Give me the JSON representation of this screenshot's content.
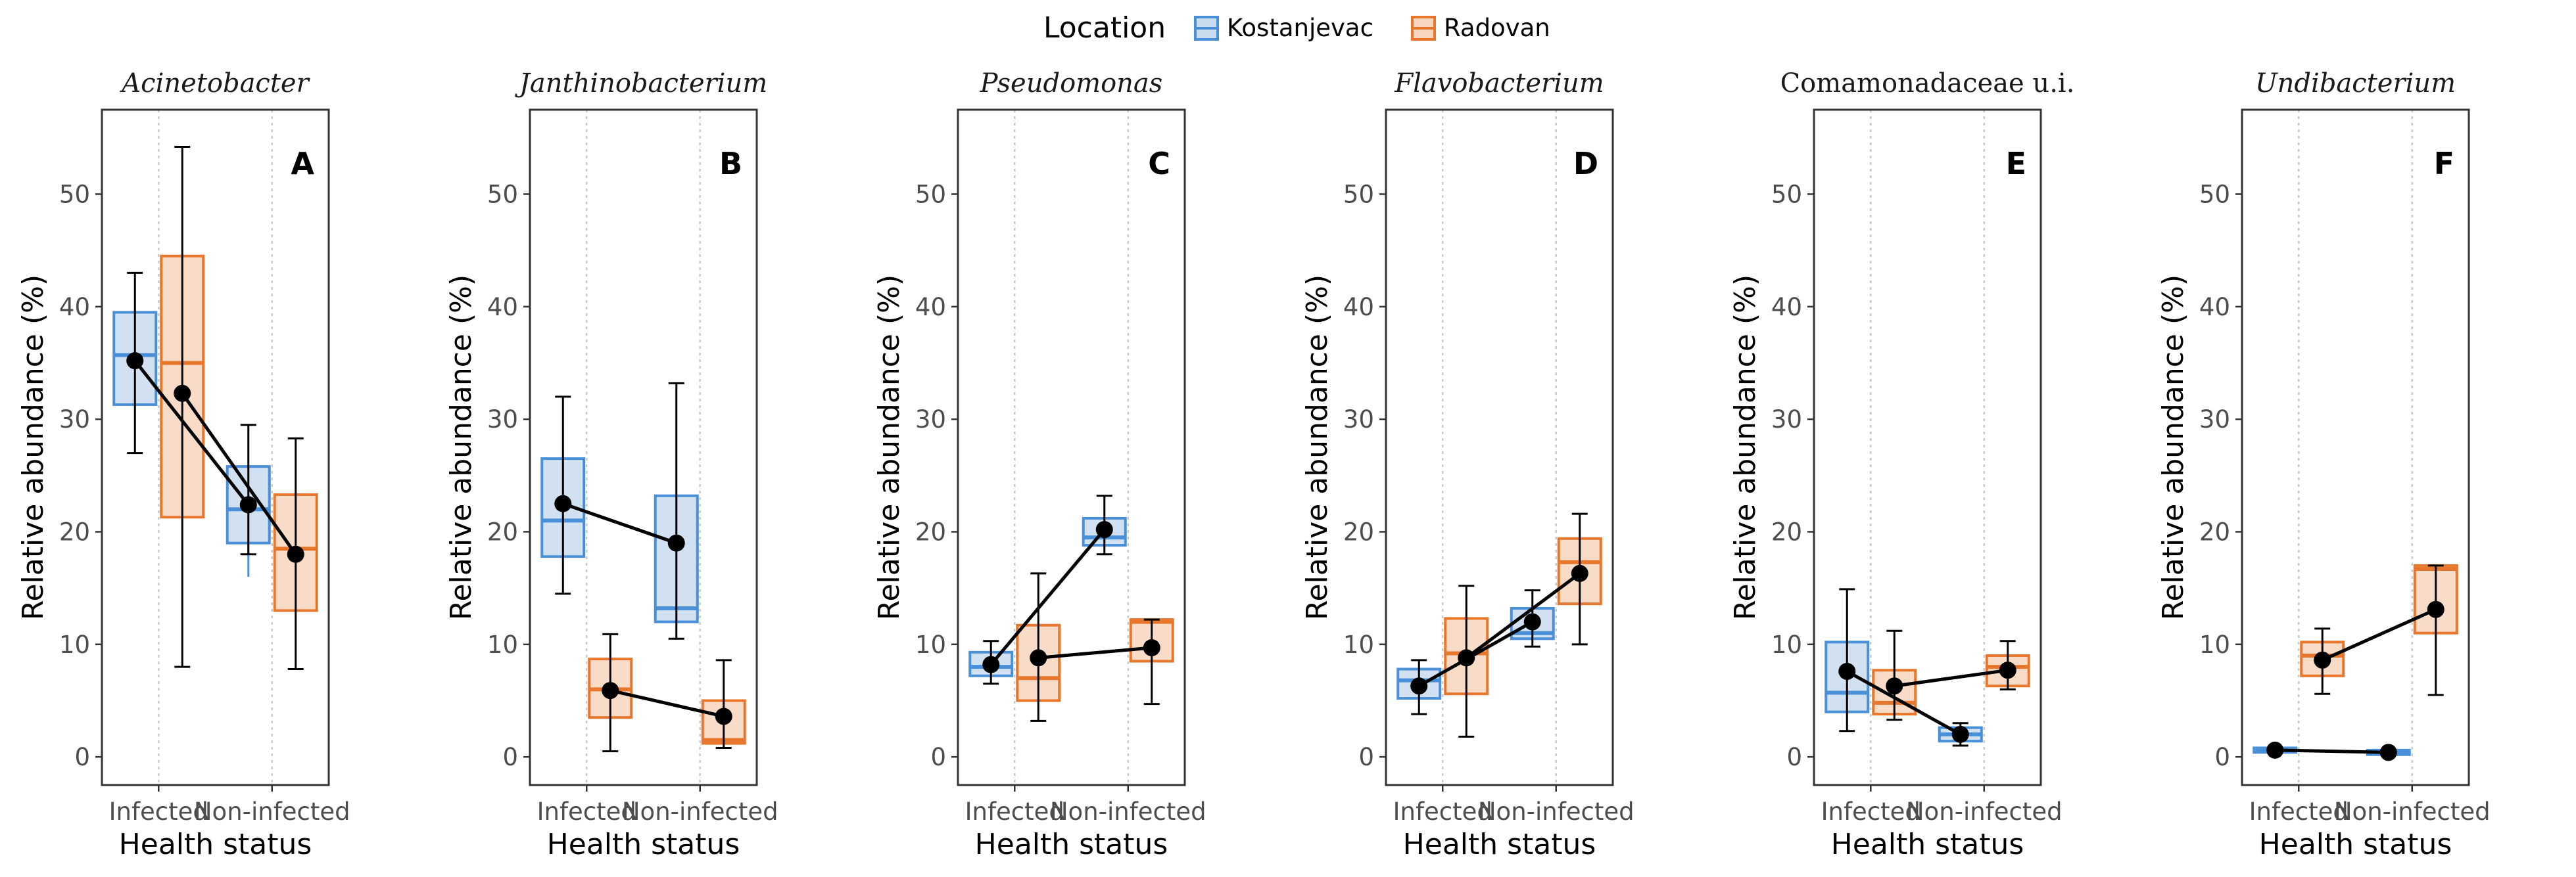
{
  "legend": {
    "title": "Location",
    "items": [
      {
        "label": "Kostanjevac",
        "color": "#4A90D9",
        "fill": "#C9DCEF"
      },
      {
        "label": "Radovan",
        "color": "#E8772E",
        "fill": "#F8D6BE"
      }
    ]
  },
  "chart_data": [
    {
      "type": "box",
      "panel": "A",
      "title": "Acinetobacter",
      "title_italic": true,
      "xlabel": "Health status",
      "ylabel": "Relative abundance (%)",
      "categories": [
        "Infected",
        "Non-infected"
      ],
      "ylim": [
        -2.5,
        57.5
      ],
      "yticks": [
        0,
        10,
        20,
        30,
        40,
        50
      ],
      "series": [
        {
          "name": "Kostanjevac",
          "boxes": [
            {
              "q1": 31.3,
              "median": 35.7,
              "q3": 39.5,
              "whisker_low": 31.3,
              "whisker_high": 39.5
            },
            {
              "q1": 19.0,
              "median": 22.0,
              "q3": 25.8,
              "whisker_low": 16.0,
              "whisker_high": 25.8
            }
          ],
          "mean": [
            35.2,
            22.4
          ],
          "err_low": [
            27.0,
            18.0
          ],
          "err_high": [
            43.0,
            29.5
          ]
        },
        {
          "name": "Radovan",
          "boxes": [
            {
              "q1": 21.3,
              "median": 35.0,
              "q3": 44.5,
              "whisker_low": 21.3,
              "whisker_high": 44.5
            },
            {
              "q1": 13.0,
              "median": 18.5,
              "q3": 23.3,
              "whisker_low": 13.0,
              "whisker_high": 23.3
            }
          ],
          "mean": [
            32.3,
            18.0
          ],
          "err_low": [
            8.0,
            7.8
          ],
          "err_high": [
            54.2,
            28.3
          ]
        }
      ]
    },
    {
      "type": "box",
      "panel": "B",
      "title": "Janthinobacterium",
      "title_italic": true,
      "xlabel": "Health status",
      "ylabel": "Relative abundance (%)",
      "categories": [
        "Infected",
        "Non-infected"
      ],
      "ylim": [
        -2.5,
        57.5
      ],
      "yticks": [
        0,
        10,
        20,
        30,
        40,
        50
      ],
      "series": [
        {
          "name": "Kostanjevac",
          "boxes": [
            {
              "q1": 17.8,
              "median": 21.0,
              "q3": 26.5,
              "whisker_low": 17.8,
              "whisker_high": 26.5
            },
            {
              "q1": 12.0,
              "median": 13.2,
              "q3": 23.2,
              "whisker_low": 12.0,
              "whisker_high": 23.2
            }
          ],
          "mean": [
            22.5,
            19.0
          ],
          "err_low": [
            14.5,
            10.5
          ],
          "err_high": [
            32.0,
            33.2
          ]
        },
        {
          "name": "Radovan",
          "boxes": [
            {
              "q1": 3.5,
              "median": 6.0,
              "q3": 8.7,
              "whisker_low": 3.5,
              "whisker_high": 8.7
            },
            {
              "q1": 1.2,
              "median": 1.5,
              "q3": 5.0,
              "whisker_low": 1.2,
              "whisker_high": 5.0
            }
          ],
          "mean": [
            5.9,
            3.6
          ],
          "err_low": [
            0.5,
            0.8
          ],
          "err_high": [
            10.9,
            8.6
          ]
        }
      ]
    },
    {
      "type": "box",
      "panel": "C",
      "title": "Pseudomonas",
      "title_italic": true,
      "xlabel": "Health status",
      "ylabel": "Relative abundance (%)",
      "categories": [
        "Infected",
        "Non-infected"
      ],
      "ylim": [
        -2.5,
        57.5
      ],
      "yticks": [
        0,
        10,
        20,
        30,
        40,
        50
      ],
      "series": [
        {
          "name": "Kostanjevac",
          "boxes": [
            {
              "q1": 7.2,
              "median": 8.0,
              "q3": 9.3,
              "whisker_low": 7.2,
              "whisker_high": 9.3
            },
            {
              "q1": 18.8,
              "median": 19.5,
              "q3": 21.2,
              "whisker_low": 18.8,
              "whisker_high": 21.2
            }
          ],
          "mean": [
            8.2,
            20.2
          ],
          "err_low": [
            6.5,
            18.0
          ],
          "err_high": [
            10.3,
            23.2
          ]
        },
        {
          "name": "Radovan",
          "boxes": [
            {
              "q1": 5.0,
              "median": 7.0,
              "q3": 11.7,
              "whisker_low": 5.0,
              "whisker_high": 11.7
            },
            {
              "q1": 8.5,
              "median": 12.0,
              "q3": 12.2,
              "whisker_low": 8.5,
              "whisker_high": 12.2
            }
          ],
          "mean": [
            8.8,
            9.7
          ],
          "err_low": [
            3.2,
            4.7
          ],
          "err_high": [
            16.3,
            12.2
          ]
        }
      ]
    },
    {
      "type": "box",
      "panel": "D",
      "title": "Flavobacterium",
      "title_italic": true,
      "xlabel": "Health status",
      "ylabel": "Relative abundance (%)",
      "categories": [
        "Infected",
        "Non-infected"
      ],
      "ylim": [
        -2.5,
        57.5
      ],
      "yticks": [
        0,
        10,
        20,
        30,
        40,
        50
      ],
      "series": [
        {
          "name": "Kostanjevac",
          "boxes": [
            {
              "q1": 5.2,
              "median": 6.8,
              "q3": 7.8,
              "whisker_low": 5.2,
              "whisker_high": 7.8
            },
            {
              "q1": 10.5,
              "median": 11.0,
              "q3": 13.2,
              "whisker_low": 10.5,
              "whisker_high": 13.2
            }
          ],
          "mean": [
            6.3,
            12.0
          ],
          "err_low": [
            3.8,
            9.8
          ],
          "err_high": [
            8.6,
            14.8
          ]
        },
        {
          "name": "Radovan",
          "boxes": [
            {
              "q1": 5.6,
              "median": 9.2,
              "q3": 12.3,
              "whisker_low": 5.6,
              "whisker_high": 12.3
            },
            {
              "q1": 13.6,
              "median": 17.3,
              "q3": 19.4,
              "whisker_low": 13.6,
              "whisker_high": 19.4
            }
          ],
          "mean": [
            8.8,
            16.3
          ],
          "err_low": [
            1.8,
            10.0
          ],
          "err_high": [
            15.2,
            21.6
          ]
        }
      ]
    },
    {
      "type": "box",
      "panel": "E",
      "title": "Comamonadaceae u.i.",
      "title_italic": false,
      "xlabel": "Health status",
      "ylabel": "Relative abundance (%)",
      "categories": [
        "Infected",
        "Non-infected"
      ],
      "ylim": [
        -2.5,
        57.5
      ],
      "yticks": [
        0,
        10,
        20,
        30,
        40,
        50
      ],
      "series": [
        {
          "name": "Kostanjevac",
          "boxes": [
            {
              "q1": 4.0,
              "median": 5.7,
              "q3": 10.2,
              "whisker_low": 4.0,
              "whisker_high": 10.2
            },
            {
              "q1": 1.4,
              "median": 2.0,
              "q3": 2.6,
              "whisker_low": 1.4,
              "whisker_high": 2.6
            }
          ],
          "mean": [
            7.6,
            2.0
          ],
          "err_low": [
            2.3,
            1.0
          ],
          "err_high": [
            14.9,
            3.0
          ]
        },
        {
          "name": "Radovan",
          "boxes": [
            {
              "q1": 3.8,
              "median": 4.8,
              "q3": 7.7,
              "whisker_low": 3.8,
              "whisker_high": 7.7
            },
            {
              "q1": 6.3,
              "median": 8.0,
              "q3": 9.0,
              "whisker_low": 6.3,
              "whisker_high": 9.0
            }
          ],
          "mean": [
            6.3,
            7.7
          ],
          "err_low": [
            3.3,
            6.0
          ],
          "err_high": [
            11.2,
            10.3
          ]
        }
      ]
    },
    {
      "type": "box",
      "panel": "F",
      "title": "Undibacterium",
      "title_italic": true,
      "xlabel": "Health status",
      "ylabel": "Relative abundance (%)",
      "categories": [
        "Infected",
        "Non-infected"
      ],
      "ylim": [
        -2.5,
        57.5
      ],
      "yticks": [
        0,
        10,
        20,
        30,
        40,
        50
      ],
      "series": [
        {
          "name": "Kostanjevac",
          "boxes": [
            {
              "q1": 0.4,
              "median": 0.6,
              "q3": 0.8,
              "whisker_low": 0.4,
              "whisker_high": 0.8
            },
            {
              "q1": 0.2,
              "median": 0.4,
              "q3": 0.6,
              "whisker_low": 0.2,
              "whisker_high": 0.6
            }
          ],
          "mean": [
            0.6,
            0.4
          ],
          "err_low": [
            0.4,
            0.3
          ],
          "err_high": [
            0.8,
            0.5
          ]
        },
        {
          "name": "Radovan",
          "boxes": [
            {
              "q1": 7.2,
              "median": 9.0,
              "q3": 10.2,
              "whisker_low": 7.2,
              "whisker_high": 10.2
            },
            {
              "q1": 11.0,
              "median": 16.7,
              "q3": 17.0,
              "whisker_low": 11.0,
              "whisker_high": 17.0
            }
          ],
          "mean": [
            8.6,
            13.1
          ],
          "err_low": [
            5.6,
            5.5
          ],
          "err_high": [
            11.4,
            17.0
          ]
        }
      ]
    }
  ]
}
